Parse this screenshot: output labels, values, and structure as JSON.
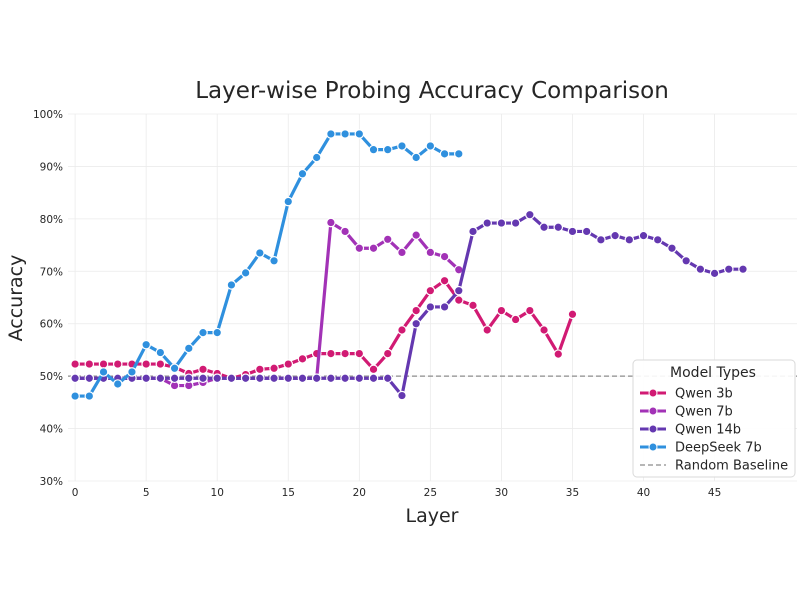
{
  "chart_data": {
    "type": "line",
    "title": "Layer-wise Probing Accuracy Comparison",
    "xlabel": "Layer",
    "ylabel": "Accuracy",
    "xlim": [
      -0.5,
      50.8
    ],
    "ylim": [
      30,
      100
    ],
    "x_ticks": [
      0,
      5,
      10,
      15,
      20,
      25,
      30,
      35,
      40,
      45
    ],
    "y_ticks": [
      30,
      40,
      50,
      60,
      70,
      80,
      90,
      100
    ],
    "y_tick_labels": [
      "30%",
      "40%",
      "50%",
      "60%",
      "70%",
      "80%",
      "90%",
      "100%"
    ],
    "grid": true,
    "legend_title": "Model Types",
    "legend_position": "lower-right",
    "series": [
      {
        "name": "Qwen 3b",
        "color": "#d11a73",
        "x": [
          0,
          1,
          2,
          3,
          4,
          5,
          6,
          7,
          8,
          9,
          10,
          11,
          12,
          13,
          14,
          15,
          16,
          17,
          18,
          19,
          20,
          21,
          22,
          23,
          24,
          25,
          26,
          27,
          28,
          29,
          30,
          31,
          32,
          33,
          34,
          35
        ],
        "values": [
          52.3,
          52.3,
          52.3,
          52.3,
          52.3,
          52.3,
          52.3,
          51.7,
          50.5,
          51.3,
          50.5,
          49.6,
          50.3,
          51.3,
          51.5,
          52.3,
          53.3,
          54.3,
          54.3,
          54.3,
          54.3,
          51.3,
          54.3,
          58.8,
          62.5,
          66.3,
          68.2,
          64.5,
          63.5,
          58.8,
          62.5,
          60.8,
          62.5,
          58.8,
          54.2,
          61.8
        ]
      },
      {
        "name": "Qwen 7b",
        "color": "#a232b6",
        "x": [
          0,
          1,
          2,
          3,
          4,
          5,
          6,
          7,
          8,
          9,
          10,
          11,
          12,
          13,
          14,
          15,
          16,
          17,
          18,
          19,
          20,
          21,
          22,
          23,
          24,
          25,
          26,
          27
        ],
        "values": [
          49.6,
          49.6,
          49.6,
          49.6,
          49.6,
          49.6,
          49.6,
          48.2,
          48.2,
          48.8,
          49.6,
          49.6,
          49.6,
          49.6,
          49.6,
          49.6,
          49.6,
          49.6,
          79.3,
          77.6,
          74.4,
          74.4,
          76.1,
          73.6,
          76.9,
          73.6,
          72.8,
          70.3
        ]
      },
      {
        "name": "Qwen 14b",
        "color": "#6438b0",
        "x": [
          0,
          1,
          2,
          3,
          4,
          5,
          6,
          7,
          8,
          9,
          10,
          11,
          12,
          13,
          14,
          15,
          16,
          17,
          18,
          19,
          20,
          21,
          22,
          23,
          24,
          25,
          26,
          27,
          28,
          29,
          30,
          31,
          32,
          33,
          34,
          35,
          36,
          37,
          38,
          39,
          40,
          41,
          42,
          43,
          44,
          45,
          46,
          47
        ],
        "values": [
          49.6,
          49.6,
          49.6,
          49.6,
          49.6,
          49.6,
          49.6,
          49.6,
          49.6,
          49.6,
          49.6,
          49.6,
          49.6,
          49.6,
          49.6,
          49.6,
          49.6,
          49.6,
          49.6,
          49.6,
          49.6,
          49.6,
          49.6,
          46.3,
          60.0,
          63.2,
          63.2,
          66.3,
          77.6,
          79.2,
          79.2,
          79.2,
          80.8,
          78.4,
          78.4,
          77.6,
          77.6,
          76.0,
          76.8,
          76.0,
          76.8,
          76.0,
          74.4,
          72.0,
          70.4,
          69.6,
          70.4,
          70.4
        ]
      },
      {
        "name": "DeepSeek 7b",
        "color": "#2f90de",
        "x": [
          0,
          1,
          2,
          3,
          4,
          5,
          6,
          7,
          8,
          9,
          10,
          11,
          12,
          13,
          14,
          15,
          16,
          17,
          18,
          19,
          20,
          21,
          22,
          23,
          24,
          25,
          26,
          27
        ],
        "values": [
          46.2,
          46.2,
          50.8,
          48.5,
          50.8,
          56.0,
          54.5,
          51.5,
          55.3,
          58.3,
          58.3,
          67.4,
          69.7,
          73.5,
          72.0,
          83.3,
          88.6,
          91.7,
          96.2,
          96.2,
          96.2,
          93.2,
          93.2,
          93.9,
          91.7,
          93.9,
          92.4,
          92.4
        ]
      }
    ],
    "baseline": {
      "name": "Random Baseline",
      "value": 50,
      "color": "#8c8c8c"
    }
  }
}
